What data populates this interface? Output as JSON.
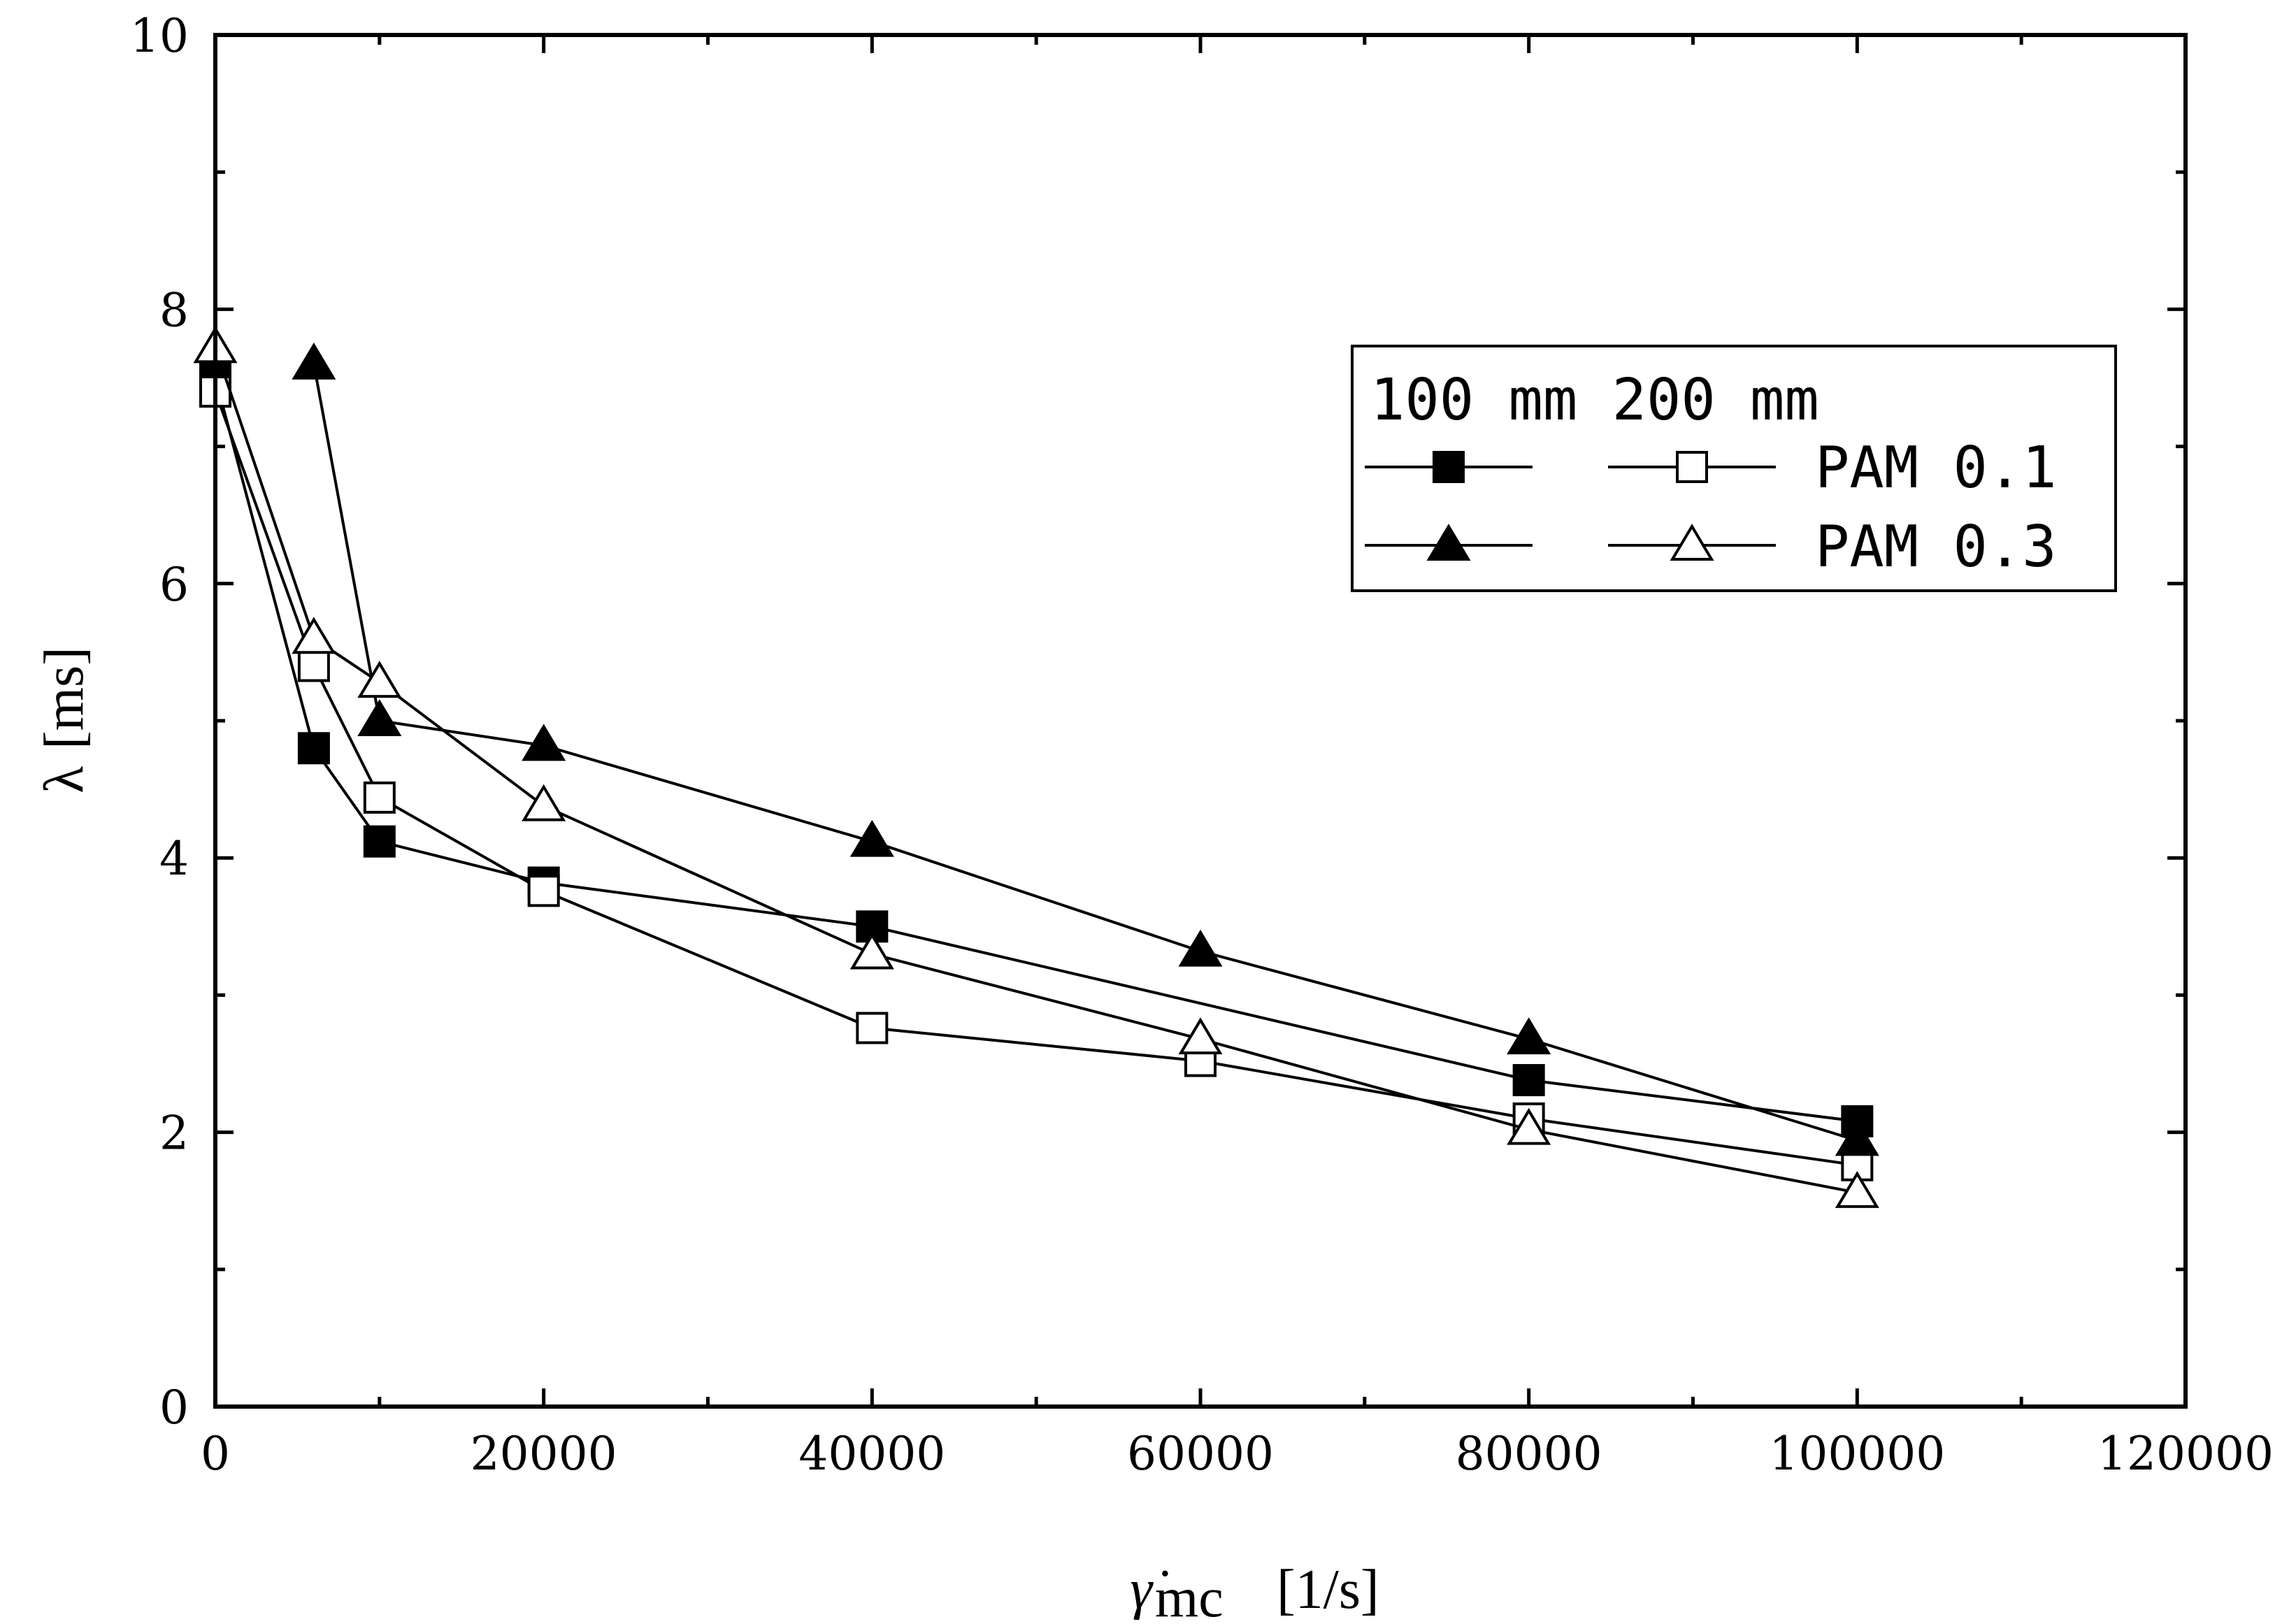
{
  "chart_data": {
    "type": "line",
    "title": "",
    "xlabel": {
      "symbol": "γ̇",
      "subscript": "mc",
      "unit": "[1/s]"
    },
    "ylabel": {
      "symbol": "λ",
      "unit": "[ms]"
    },
    "xlim": [
      0,
      120000
    ],
    "ylim": [
      0,
      10
    ],
    "x_ticks": [
      0,
      20000,
      40000,
      60000,
      80000,
      100000,
      120000
    ],
    "x_tick_labels": [
      "0",
      "20000",
      "40000",
      "60000",
      "80000",
      "100000",
      "120000"
    ],
    "y_ticks": [
      0,
      2,
      4,
      6,
      8,
      10
    ],
    "y_tick_labels": [
      "0",
      "2",
      "4",
      "6",
      "8",
      "10"
    ],
    "grid": false,
    "legend": {
      "placement": "top-right",
      "header": "100 mm 200 mm",
      "rows": [
        {
          "label": "PAM 0.1",
          "series": [
            "s1",
            "s2"
          ]
        },
        {
          "label": "PAM 0.3",
          "series": [
            "s3",
            "s4"
          ]
        }
      ]
    },
    "series": [
      {
        "id": "s1",
        "name": "100 mm PAM 0.1",
        "marker": "square",
        "filled": true,
        "x": [
          0,
          6000,
          10000,
          20000,
          40000,
          80000,
          100000
        ],
        "y": [
          7.5,
          4.8,
          4.12,
          3.82,
          3.5,
          2.38,
          2.08
        ]
      },
      {
        "id": "s2",
        "name": "200 mm PAM 0.1",
        "marker": "square",
        "filled": false,
        "x": [
          0,
          6000,
          10000,
          20000,
          40000,
          60000,
          80000,
          100000
        ],
        "y": [
          7.4,
          5.4,
          4.44,
          3.76,
          2.76,
          2.52,
          2.1,
          1.76
        ]
      },
      {
        "id": "s3",
        "name": "100 mm PAM 0.3",
        "marker": "triangle",
        "filled": true,
        "x": [
          6000,
          10000,
          20000,
          40000,
          60000,
          80000,
          100000
        ],
        "y": [
          7.6,
          5.0,
          4.82,
          4.12,
          3.32,
          2.68,
          1.94
        ]
      },
      {
        "id": "s4",
        "name": "200 mm PAM 0.3",
        "marker": "triangle",
        "filled": false,
        "x": [
          0,
          6000,
          10000,
          20000,
          40000,
          60000,
          80000,
          100000
        ],
        "y": [
          7.72,
          5.6,
          5.28,
          4.38,
          3.3,
          2.68,
          2.02,
          1.56
        ]
      }
    ]
  }
}
